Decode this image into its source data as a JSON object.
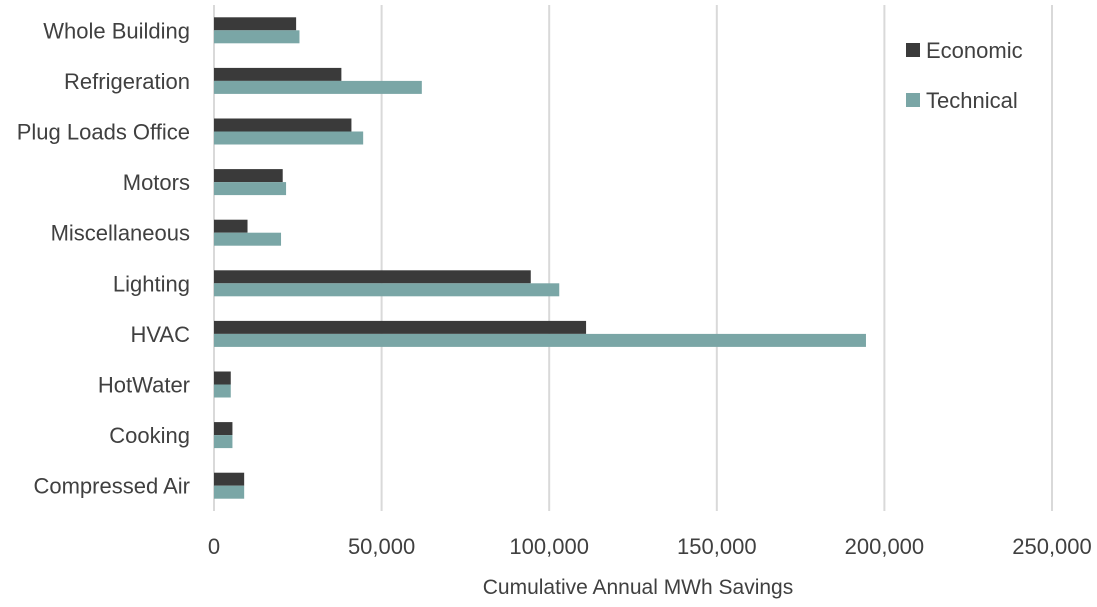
{
  "chart_data": {
    "type": "bar",
    "orientation": "horizontal",
    "categories": [
      "Whole Building",
      "Refrigeration",
      "Plug Loads Office",
      "Motors",
      "Miscellaneous",
      "Lighting",
      "HVAC",
      "HotWater",
      "Cooking",
      "Compressed Air"
    ],
    "series": [
      {
        "name": "Economic",
        "color": "#3a3a3a",
        "values": [
          24500,
          38000,
          41000,
          20500,
          10000,
          94500,
          111000,
          5000,
          5500,
          9000
        ]
      },
      {
        "name": "Technical",
        "color": "#7aa6a6",
        "values": [
          25500,
          62000,
          44500,
          21500,
          20000,
          103000,
          194500,
          5000,
          5500,
          9000
        ]
      }
    ],
    "xlabel": "Cumulative Annual MWh Savings",
    "ylabel": "",
    "xlim": [
      0,
      250000
    ],
    "x_ticks": [
      "0",
      "50,000",
      "100,000",
      "150,000",
      "200,000",
      "250,000"
    ],
    "grid": "vertical",
    "legend_position": "top-right"
  }
}
